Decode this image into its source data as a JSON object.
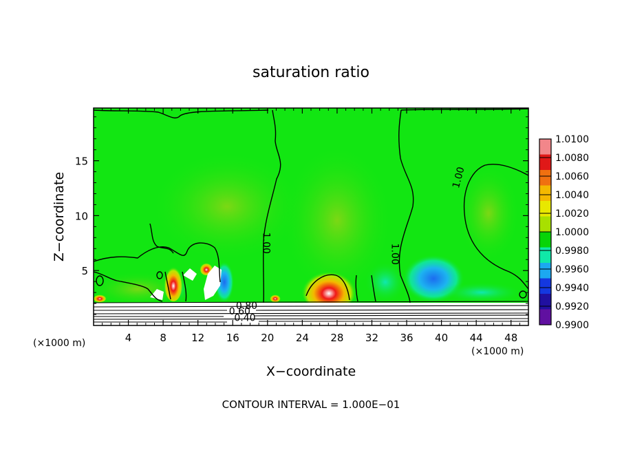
{
  "chart_data": {
    "type": "heatmap",
    "title": "saturation ratio",
    "xlabel": "X−coordinate",
    "ylabel": "Z−coordinate",
    "x_unit_left": "(×1000 m)",
    "x_unit_right": "(×1000 m)",
    "xlim": [
      0,
      50
    ],
    "ylim": [
      0,
      19.8
    ],
    "x_ticks": [
      4,
      8,
      12,
      16,
      20,
      24,
      28,
      32,
      36,
      40,
      44,
      48
    ],
    "y_ticks": [
      5,
      10,
      15
    ],
    "footer": "CONTOUR INTERVAL = 1.000E−01",
    "contour_labels": [
      {
        "text": "1.00",
        "x": 19.5,
        "z": 7.5,
        "rotate": 90
      },
      {
        "text": "1.00",
        "x": 34.3,
        "z": 6.5,
        "rotate": 90
      },
      {
        "text": "1.00",
        "x": 42.3,
        "z": 13.4,
        "rotate": -75
      },
      {
        "text": "0.80",
        "x": 17.6,
        "z": 1.5,
        "rotate": 0
      },
      {
        "text": "0.60",
        "x": 16.8,
        "z": 1.0,
        "rotate": 0
      },
      {
        "text": "0.40",
        "x": 17.4,
        "z": 0.4,
        "rotate": 0
      }
    ],
    "colorbar": {
      "levels": [
        "1.0100",
        "1.0080",
        "1.0060",
        "1.0040",
        "1.0020",
        "1.0000",
        "0.9980",
        "0.9960",
        "0.9940",
        "0.9920",
        "0.9900"
      ],
      "colors": [
        "#f2868a",
        "#e01818",
        "#f07010",
        "#f4b800",
        "#e8e800",
        "#a8e000",
        "#08d408",
        "#10e8a8",
        "#1ca8f0",
        "#1438e0",
        "#2010a0",
        "#6010a0"
      ]
    },
    "field_regions": [
      {
        "label": "background",
        "color": "#12e612"
      },
      {
        "label": "moist plume x=26-30",
        "color": "#f01818"
      },
      {
        "label": "dry region x=36-42",
        "color": "#1ca8f0"
      }
    ]
  }
}
